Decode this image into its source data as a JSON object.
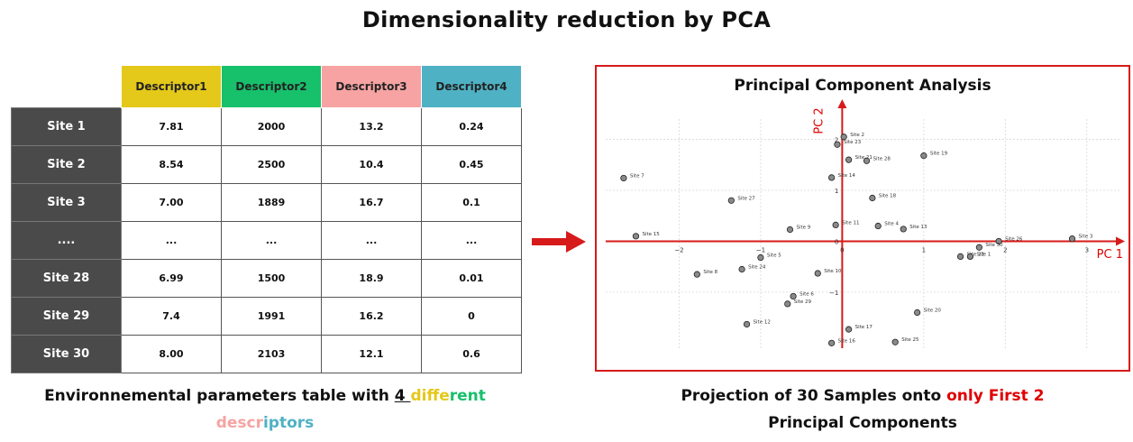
{
  "title": "Dimensionality reduction by PCA",
  "table": {
    "headers": [
      {
        "label": "Descriptor1",
        "color": "#e4c81a"
      },
      {
        "label": "Descriptor2",
        "color": "#17c06b"
      },
      {
        "label": "Descriptor3",
        "color": "#f7a3a3"
      },
      {
        "label": "Descriptor4",
        "color": "#4fb1c4"
      }
    ],
    "rows": [
      {
        "site": "Site 1",
        "values": [
          "7.81",
          "2000",
          "13.2",
          "0.24"
        ]
      },
      {
        "site": "Site 2",
        "values": [
          "8.54",
          "2500",
          "10.4",
          "0.45"
        ]
      },
      {
        "site": "Site 3",
        "values": [
          "7.00",
          "1889",
          "16.7",
          "0.1"
        ]
      },
      {
        "site": "....",
        "values": [
          "...",
          "...",
          "...",
          "..."
        ]
      },
      {
        "site": "Site 28",
        "values": [
          "6.99",
          "1500",
          "18.9",
          "0.01"
        ]
      },
      {
        "site": "Site 29",
        "values": [
          "7.4",
          "1991",
          "16.2",
          "0"
        ]
      },
      {
        "site": "Site 30",
        "values": [
          "8.00",
          "2103",
          "12.1",
          "0.6"
        ]
      }
    ]
  },
  "caption_left": {
    "part1": "Environnemental parameters table with ",
    "part2": "4 ",
    "w_diff": "diffe",
    "w_rent": "rent",
    "w_desc": "descr",
    "w_iptors": "iptors"
  },
  "caption_right": {
    "part1": "Projection of 30 Samples onto ",
    "part2": "only First 2",
    "part3": "Principal Components"
  },
  "colors": {
    "accent_red": "#e00000",
    "box_border": "#d71a1a",
    "yellow": "#e4c81a",
    "green": "#17c06b",
    "pink": "#f7a3a3",
    "teal": "#4fb1c4"
  },
  "chart_data": {
    "type": "scatter",
    "title": "Principal Component Analysis",
    "xlabel": "PC 1",
    "ylabel": "PC 2",
    "xlim": [
      -2.9,
      3.4
    ],
    "ylim": [
      -2.1,
      2.4
    ],
    "xticks": [
      "-2",
      "-1",
      "0",
      "1",
      "2",
      "3"
    ],
    "yticks": [
      "2",
      "1",
      "0",
      "-1"
    ],
    "grid": true,
    "points": [
      {
        "label": "Site 2",
        "x": 0.02,
        "y": 2.05
      },
      {
        "label": "Site 23",
        "x": -0.06,
        "y": 1.9
      },
      {
        "label": "Site 21",
        "x": 0.08,
        "y": 1.6
      },
      {
        "label": "Site 28",
        "x": 0.3,
        "y": 1.58
      },
      {
        "label": "Site 19",
        "x": 1.0,
        "y": 1.68
      },
      {
        "label": "Site 14",
        "x": -0.13,
        "y": 1.25
      },
      {
        "label": "Site 7",
        "x": -2.68,
        "y": 1.24
      },
      {
        "label": "Site 18",
        "x": 0.37,
        "y": 0.85
      },
      {
        "label": "Site 27",
        "x": -1.36,
        "y": 0.8
      },
      {
        "label": "Site 11",
        "x": -0.08,
        "y": 0.32
      },
      {
        "label": "Site 4",
        "x": 0.44,
        "y": 0.3
      },
      {
        "label": "Site 13",
        "x": 0.75,
        "y": 0.24
      },
      {
        "label": "Site 9",
        "x": -0.64,
        "y": 0.23
      },
      {
        "label": "Site 15",
        "x": -2.53,
        "y": 0.1
      },
      {
        "label": "Site 3",
        "x": 2.82,
        "y": 0.05
      },
      {
        "label": "Site 26",
        "x": 1.92,
        "y": 0.0
      },
      {
        "label": "Site 30",
        "x": 1.68,
        "y": -0.12
      },
      {
        "label": "Site 22",
        "x": 1.45,
        "y": -0.3
      },
      {
        "label": "Site 1",
        "x": 1.57,
        "y": -0.3
      },
      {
        "label": "Site 5",
        "x": -1.0,
        "y": -0.32
      },
      {
        "label": "Site 24",
        "x": -1.23,
        "y": -0.55
      },
      {
        "label": "Site 10",
        "x": -0.3,
        "y": -0.63
      },
      {
        "label": "Site 8",
        "x": -1.78,
        "y": -0.65
      },
      {
        "label": "Site 6",
        "x": -0.6,
        "y": -1.08
      },
      {
        "label": "Site 29",
        "x": -0.67,
        "y": -1.23
      },
      {
        "label": "Site 20",
        "x": 0.92,
        "y": -1.4
      },
      {
        "label": "Site 12",
        "x": -1.17,
        "y": -1.63
      },
      {
        "label": "Site 17",
        "x": 0.08,
        "y": -1.73
      },
      {
        "label": "Site 16",
        "x": -0.13,
        "y": -2.0
      },
      {
        "label": "Site 25",
        "x": 0.65,
        "y": -1.98
      }
    ]
  }
}
